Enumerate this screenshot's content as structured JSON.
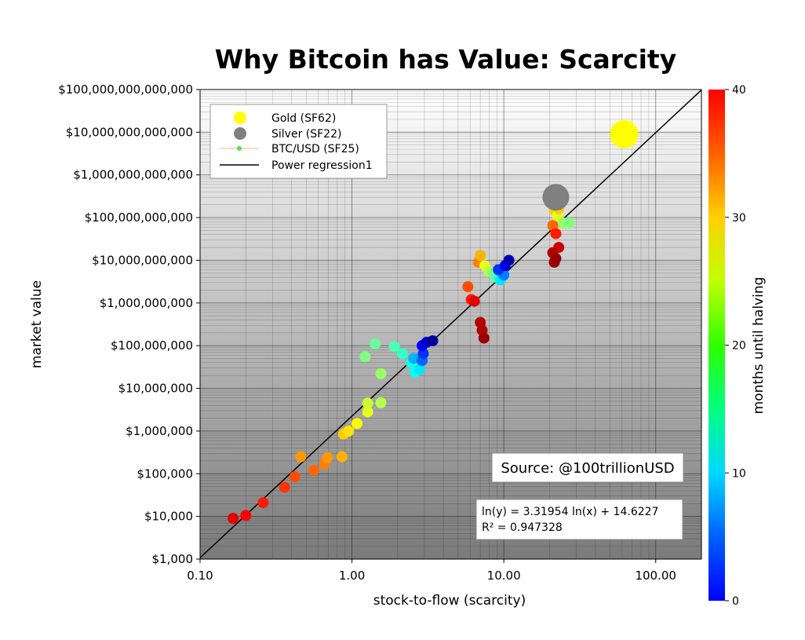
{
  "chart_data": {
    "type": "scatter",
    "title": "Why Bitcoin has Value: Scarcity",
    "xlabel": "stock-to-flow (scarcity)",
    "ylabel": "market value",
    "xscale": "log",
    "yscale": "log",
    "xlim": [
      0.1,
      200
    ],
    "ylim": [
      1000,
      100000000000000
    ],
    "x_ticks": [
      {
        "value": 0.1,
        "label": "0.10"
      },
      {
        "value": 1,
        "label": "1.00"
      },
      {
        "value": 10,
        "label": "10.00"
      },
      {
        "value": 100,
        "label": "100.00"
      }
    ],
    "y_ticks": [
      {
        "value": 1000,
        "label": "$1,000"
      },
      {
        "value": 10000,
        "label": "$10,000"
      },
      {
        "value": 100000,
        "label": "$100,000"
      },
      {
        "value": 1000000,
        "label": "$1,000,000"
      },
      {
        "value": 10000000,
        "label": "$10,000,000"
      },
      {
        "value": 100000000,
        "label": "$100,000,000"
      },
      {
        "value": 1000000000,
        "label": "$1,000,000,000"
      },
      {
        "value": 10000000000,
        "label": "$10,000,000,000"
      },
      {
        "value": 100000000000,
        "label": "$100,000,000,000"
      },
      {
        "value": 1000000000000,
        "label": "$1,000,000,000,000"
      },
      {
        "value": 10000000000000,
        "label": "$10,000,000,000,000"
      },
      {
        "value": 100000000000000,
        "label": "$100,000,000,000,000"
      }
    ],
    "grid": true,
    "legend_position": "top-left",
    "legend": [
      {
        "label": "Gold (SF62)",
        "kind": "circle",
        "color": "#ffff00"
      },
      {
        "label": "Silver (SF22)",
        "kind": "circle",
        "color": "#808080"
      },
      {
        "label": "BTC/USD (SF25)",
        "kind": "line-dot",
        "color": "#50e050",
        "line_color": "#f5b38a"
      },
      {
        "label": "Power regression1",
        "kind": "line",
        "color": "#000000"
      }
    ],
    "source_label": "Source: @100trillionUSD",
    "equation_lines": [
      "ln(y) = 3.31954 ln(x) + 14.6227",
      "R² = 0.947328"
    ],
    "regression": {
      "slope": 3.31954,
      "intercept": 14.6227
    },
    "colorbar": {
      "label": "months until halving",
      "min": 0,
      "max": 40,
      "ticks": [
        0,
        10,
        20,
        30,
        40
      ],
      "colormap": "jet"
    },
    "series": [
      {
        "name": "Gold (SF62)",
        "color": "#ffff00",
        "points": [
          {
            "x": 62,
            "y": 9000000000000
          }
        ]
      },
      {
        "name": "Silver (SF22)",
        "color": "#808080",
        "points": [
          {
            "x": 22,
            "y": 300000000000
          }
        ]
      },
      {
        "name": "BTC/USD (SF25)",
        "points": [
          {
            "x": 0.165,
            "y": 9000,
            "m": 36
          },
          {
            "x": 0.2,
            "y": 10500,
            "m": 35
          },
          {
            "x": 0.26,
            "y": 21000,
            "m": 34
          },
          {
            "x": 0.36,
            "y": 48000,
            "m": 33
          },
          {
            "x": 0.42,
            "y": 85000,
            "m": 32
          },
          {
            "x": 0.56,
            "y": 120000,
            "m": 31
          },
          {
            "x": 0.66,
            "y": 170000,
            "m": 30
          },
          {
            "x": 0.69,
            "y": 240000,
            "m": 29
          },
          {
            "x": 0.46,
            "y": 250000,
            "m": 29
          },
          {
            "x": 0.86,
            "y": 250000,
            "m": 28
          },
          {
            "x": 0.88,
            "y": 850000,
            "m": 27
          },
          {
            "x": 0.95,
            "y": 1000000,
            "m": 26
          },
          {
            "x": 1.08,
            "y": 1500000,
            "m": 25
          },
          {
            "x": 1.27,
            "y": 2800000,
            "m": 24
          },
          {
            "x": 1.27,
            "y": 4500000,
            "m": 23
          },
          {
            "x": 1.55,
            "y": 4600000,
            "m": 22
          },
          {
            "x": 1.55,
            "y": 22000000,
            "m": 21
          },
          {
            "x": 1.22,
            "y": 55000000,
            "m": 20
          },
          {
            "x": 1.42,
            "y": 110000000,
            "m": 19
          },
          {
            "x": 1.9,
            "y": 95000000,
            "m": 18
          },
          {
            "x": 2.15,
            "y": 65000000,
            "m": 17
          },
          {
            "x": 2.45,
            "y": 40000000,
            "m": 16
          },
          {
            "x": 2.6,
            "y": 24000000,
            "m": 15
          },
          {
            "x": 2.8,
            "y": 28000000,
            "m": 14
          },
          {
            "x": 2.55,
            "y": 50000000,
            "m": 12
          },
          {
            "x": 2.9,
            "y": 45000000,
            "m": 9
          },
          {
            "x": 2.95,
            "y": 65000000,
            "m": 7
          },
          {
            "x": 2.9,
            "y": 100000000,
            "m": 5
          },
          {
            "x": 3.1,
            "y": 120000000,
            "m": 3
          },
          {
            "x": 3.4,
            "y": 130000000,
            "m": 1
          },
          {
            "x": 5.8,
            "y": 2400000000,
            "m": 32
          },
          {
            "x": 6.1,
            "y": 1200000000,
            "m": 34
          },
          {
            "x": 6.4,
            "y": 1100000000,
            "m": 36
          },
          {
            "x": 6.8,
            "y": 9000000000,
            "m": 30
          },
          {
            "x": 7.0,
            "y": 13000000000,
            "m": 28
          },
          {
            "x": 7.5,
            "y": 7500000000,
            "m": 24
          },
          {
            "x": 8.0,
            "y": 5500000000,
            "m": 22
          },
          {
            "x": 8.5,
            "y": 5000000000,
            "m": 20
          },
          {
            "x": 8.9,
            "y": 4000000000,
            "m": 18
          },
          {
            "x": 9.5,
            "y": 3500000000,
            "m": 14
          },
          {
            "x": 10.0,
            "y": 4500000000,
            "m": 10
          },
          {
            "x": 9.2,
            "y": 6000000000,
            "m": 7
          },
          {
            "x": 10.2,
            "y": 7500000000,
            "m": 4
          },
          {
            "x": 10.8,
            "y": 10000000000,
            "m": 2
          },
          {
            "x": 7.0,
            "y": 350000000,
            "m": 38
          },
          {
            "x": 7.2,
            "y": 230000000,
            "m": 38
          },
          {
            "x": 7.4,
            "y": 150000000,
            "m": 39
          },
          {
            "x": 21,
            "y": 230000000000,
            "m": 28
          },
          {
            "x": 21.5,
            "y": 150000000000,
            "m": 27
          },
          {
            "x": 22.5,
            "y": 110000000000,
            "m": 24
          },
          {
            "x": 23,
            "y": 160000000000,
            "m": 27
          },
          {
            "x": 24.5,
            "y": 75000000000,
            "m": 21
          },
          {
            "x": 27,
            "y": 75000000000,
            "m": 20
          },
          {
            "x": 21,
            "y": 65000000000,
            "m": 31
          },
          {
            "x": 22,
            "y": 42000000000,
            "m": 34
          },
          {
            "x": 23,
            "y": 20000000000,
            "m": 37
          },
          {
            "x": 21,
            "y": 15000000000,
            "m": 38
          },
          {
            "x": 22,
            "y": 11000000000,
            "m": 39
          },
          {
            "x": 21.5,
            "y": 9000000000,
            "m": 39
          }
        ]
      }
    ]
  }
}
